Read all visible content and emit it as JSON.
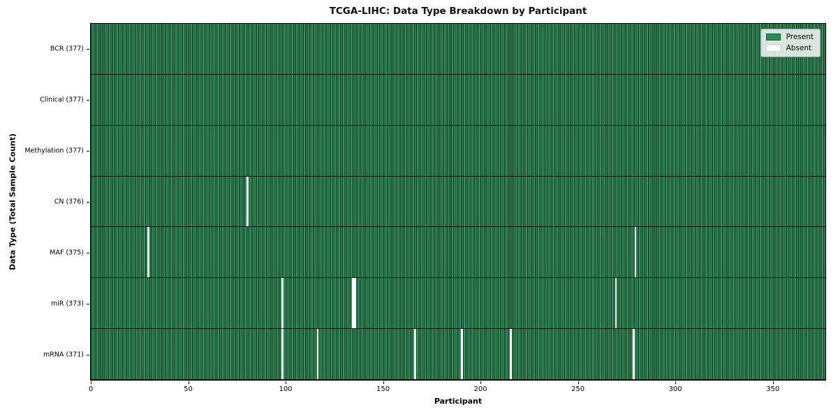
{
  "chart_data": {
    "type": "heatmap",
    "title": "TCGA-LIHC: Data Type Breakdown by Participant",
    "xlabel": "Participant",
    "ylabel": "Data Type (Total Sample Count)",
    "x_ticks": [
      0,
      50,
      100,
      150,
      200,
      250,
      300,
      350
    ],
    "x_range": [
      0,
      377
    ],
    "n_participants": 377,
    "grid": "cell-edges",
    "colors": {
      "present": "#2e8b57",
      "absent": "#ffffff"
    },
    "legend": {
      "position": "upper right",
      "entries": [
        {
          "label": "Present",
          "color": "#2e8b57"
        },
        {
          "label": "Absent",
          "color": "#ffffff"
        }
      ]
    },
    "rows": [
      {
        "data_type": "BCR",
        "label": "BCR (377)",
        "present_count": 377,
        "absent_participants": []
      },
      {
        "data_type": "Clinical",
        "label": "Clinical (377)",
        "present_count": 377,
        "absent_participants": []
      },
      {
        "data_type": "Methylation",
        "label": "Methylation (377)",
        "present_count": 377,
        "absent_participants": []
      },
      {
        "data_type": "CN",
        "label": "CN (376)",
        "present_count": 376,
        "absent_participants": [
          80
        ]
      },
      {
        "data_type": "MAF",
        "label": "MAF (375)",
        "present_count": 375,
        "absent_participants": [
          29,
          279
        ]
      },
      {
        "data_type": "miR",
        "label": "miR (373)",
        "present_count": 373,
        "absent_participants": [
          98,
          134,
          135,
          269
        ]
      },
      {
        "data_type": "mRNA",
        "label": "mRNA (371)",
        "present_count": 371,
        "absent_participants": [
          98,
          116,
          166,
          190,
          215,
          278
        ]
      }
    ]
  }
}
